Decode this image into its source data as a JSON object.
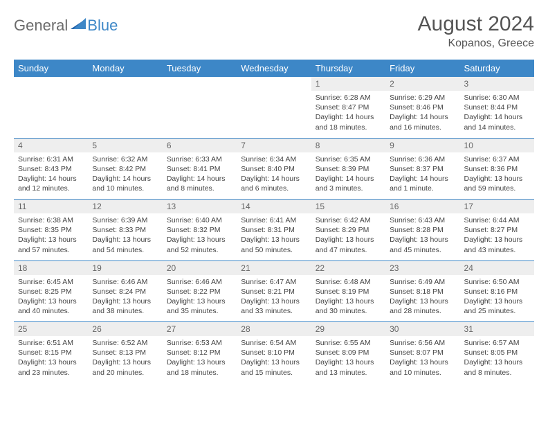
{
  "brand": {
    "part1": "General",
    "part2": "Blue"
  },
  "title": "August 2024",
  "location": "Kopanos, Greece",
  "colors": {
    "header_bg": "#3d87c7",
    "header_text": "#ffffff",
    "daynum_bg": "#eeeeee",
    "row_border": "#3d87c7",
    "text": "#444444",
    "brand_gray": "#6b6b6b",
    "brand_blue": "#3d87c7"
  },
  "weekdays": [
    "Sunday",
    "Monday",
    "Tuesday",
    "Wednesday",
    "Thursday",
    "Friday",
    "Saturday"
  ],
  "weeks": [
    [
      null,
      null,
      null,
      null,
      {
        "n": "1",
        "sunrise": "6:28 AM",
        "sunset": "8:47 PM",
        "daylight": "14 hours and 18 minutes."
      },
      {
        "n": "2",
        "sunrise": "6:29 AM",
        "sunset": "8:46 PM",
        "daylight": "14 hours and 16 minutes."
      },
      {
        "n": "3",
        "sunrise": "6:30 AM",
        "sunset": "8:44 PM",
        "daylight": "14 hours and 14 minutes."
      }
    ],
    [
      {
        "n": "4",
        "sunrise": "6:31 AM",
        "sunset": "8:43 PM",
        "daylight": "14 hours and 12 minutes."
      },
      {
        "n": "5",
        "sunrise": "6:32 AM",
        "sunset": "8:42 PM",
        "daylight": "14 hours and 10 minutes."
      },
      {
        "n": "6",
        "sunrise": "6:33 AM",
        "sunset": "8:41 PM",
        "daylight": "14 hours and 8 minutes."
      },
      {
        "n": "7",
        "sunrise": "6:34 AM",
        "sunset": "8:40 PM",
        "daylight": "14 hours and 6 minutes."
      },
      {
        "n": "8",
        "sunrise": "6:35 AM",
        "sunset": "8:39 PM",
        "daylight": "14 hours and 3 minutes."
      },
      {
        "n": "9",
        "sunrise": "6:36 AM",
        "sunset": "8:37 PM",
        "daylight": "14 hours and 1 minute."
      },
      {
        "n": "10",
        "sunrise": "6:37 AM",
        "sunset": "8:36 PM",
        "daylight": "13 hours and 59 minutes."
      }
    ],
    [
      {
        "n": "11",
        "sunrise": "6:38 AM",
        "sunset": "8:35 PM",
        "daylight": "13 hours and 57 minutes."
      },
      {
        "n": "12",
        "sunrise": "6:39 AM",
        "sunset": "8:33 PM",
        "daylight": "13 hours and 54 minutes."
      },
      {
        "n": "13",
        "sunrise": "6:40 AM",
        "sunset": "8:32 PM",
        "daylight": "13 hours and 52 minutes."
      },
      {
        "n": "14",
        "sunrise": "6:41 AM",
        "sunset": "8:31 PM",
        "daylight": "13 hours and 50 minutes."
      },
      {
        "n": "15",
        "sunrise": "6:42 AM",
        "sunset": "8:29 PM",
        "daylight": "13 hours and 47 minutes."
      },
      {
        "n": "16",
        "sunrise": "6:43 AM",
        "sunset": "8:28 PM",
        "daylight": "13 hours and 45 minutes."
      },
      {
        "n": "17",
        "sunrise": "6:44 AM",
        "sunset": "8:27 PM",
        "daylight": "13 hours and 43 minutes."
      }
    ],
    [
      {
        "n": "18",
        "sunrise": "6:45 AM",
        "sunset": "8:25 PM",
        "daylight": "13 hours and 40 minutes."
      },
      {
        "n": "19",
        "sunrise": "6:46 AM",
        "sunset": "8:24 PM",
        "daylight": "13 hours and 38 minutes."
      },
      {
        "n": "20",
        "sunrise": "6:46 AM",
        "sunset": "8:22 PM",
        "daylight": "13 hours and 35 minutes."
      },
      {
        "n": "21",
        "sunrise": "6:47 AM",
        "sunset": "8:21 PM",
        "daylight": "13 hours and 33 minutes."
      },
      {
        "n": "22",
        "sunrise": "6:48 AM",
        "sunset": "8:19 PM",
        "daylight": "13 hours and 30 minutes."
      },
      {
        "n": "23",
        "sunrise": "6:49 AM",
        "sunset": "8:18 PM",
        "daylight": "13 hours and 28 minutes."
      },
      {
        "n": "24",
        "sunrise": "6:50 AM",
        "sunset": "8:16 PM",
        "daylight": "13 hours and 25 minutes."
      }
    ],
    [
      {
        "n": "25",
        "sunrise": "6:51 AM",
        "sunset": "8:15 PM",
        "daylight": "13 hours and 23 minutes."
      },
      {
        "n": "26",
        "sunrise": "6:52 AM",
        "sunset": "8:13 PM",
        "daylight": "13 hours and 20 minutes."
      },
      {
        "n": "27",
        "sunrise": "6:53 AM",
        "sunset": "8:12 PM",
        "daylight": "13 hours and 18 minutes."
      },
      {
        "n": "28",
        "sunrise": "6:54 AM",
        "sunset": "8:10 PM",
        "daylight": "13 hours and 15 minutes."
      },
      {
        "n": "29",
        "sunrise": "6:55 AM",
        "sunset": "8:09 PM",
        "daylight": "13 hours and 13 minutes."
      },
      {
        "n": "30",
        "sunrise": "6:56 AM",
        "sunset": "8:07 PM",
        "daylight": "13 hours and 10 minutes."
      },
      {
        "n": "31",
        "sunrise": "6:57 AM",
        "sunset": "8:05 PM",
        "daylight": "13 hours and 8 minutes."
      }
    ]
  ],
  "labels": {
    "sunrise_prefix": "Sunrise: ",
    "sunset_prefix": "Sunset: ",
    "daylight_prefix": "Daylight: "
  }
}
